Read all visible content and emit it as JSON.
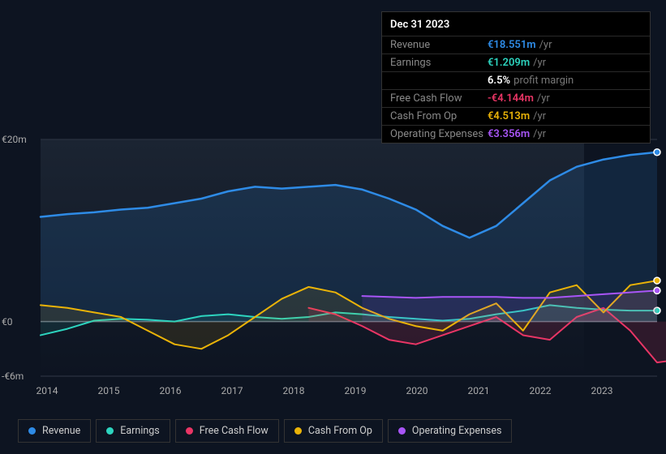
{
  "tooltip": {
    "date": "Dec 31 2023",
    "rows": [
      {
        "label": "Revenue",
        "value": "€18.551m",
        "suffix": "/yr",
        "color": "#2e8be6"
      },
      {
        "label": "Earnings",
        "value": "€1.209m",
        "suffix": "/yr",
        "color": "#2dd4bf"
      },
      {
        "label": "",
        "value": "6.5%",
        "suffix": "profit margin",
        "color": "#ffffff"
      },
      {
        "label": "Free Cash Flow",
        "value": "-€4.144m",
        "suffix": "/yr",
        "color": "#e93565"
      },
      {
        "label": "Cash From Op",
        "value": "€4.513m",
        "suffix": "/yr",
        "color": "#eab308"
      },
      {
        "label": "Operating Expenses",
        "value": "€3.356m",
        "suffix": "/yr",
        "color": "#a855f7"
      }
    ]
  },
  "chart": {
    "type": "line-area",
    "background_color": "#0d1421",
    "grid_color": "#2b3240",
    "axis_color": "#cccccc",
    "plot_fill_top": "#1b2432",
    "plot_fill_bottom": "#0d1421",
    "x_categories": [
      "2014",
      "2015",
      "2016",
      "2017",
      "2018",
      "2019",
      "2020",
      "2021",
      "2022",
      "2023"
    ],
    "x_step": 76,
    "y_ticks": [
      {
        "label": "€20m",
        "value": 20
      },
      {
        "label": "€0",
        "value": 0
      },
      {
        "label": "-€6m",
        "value": -6
      }
    ],
    "ylim": [
      -6,
      20
    ],
    "series": [
      {
        "name": "Revenue",
        "color": "#2e8be6",
        "fill_opacity": 0.15,
        "line_width": 2.5,
        "marker_end": true,
        "data": [
          11.5,
          11.8,
          12.0,
          12.3,
          12.5,
          13.0,
          13.5,
          14.3,
          14.8,
          14.6,
          14.8,
          15.0,
          14.5,
          13.5,
          12.3,
          10.5,
          9.2,
          10.5,
          13.0,
          15.5,
          17.0,
          17.8,
          18.3,
          18.6
        ]
      },
      {
        "name": "Earnings",
        "color": "#2dd4bf",
        "fill_opacity": 0.1,
        "line_width": 2,
        "marker_end": true,
        "data": [
          -1.5,
          -0.8,
          0.1,
          0.3,
          0.2,
          0.0,
          0.6,
          0.8,
          0.5,
          0.3,
          0.5,
          1.0,
          0.8,
          0.5,
          0.3,
          0.1,
          0.3,
          0.8,
          1.2,
          1.8,
          1.5,
          1.3,
          1.2,
          1.2
        ]
      },
      {
        "name": "Free Cash Flow",
        "color": "#e93565",
        "fill_opacity": 0.15,
        "line_width": 2,
        "marker_end": true,
        "start_index": 10,
        "data": [
          1.5,
          0.8,
          -0.5,
          -2.0,
          -2.5,
          -1.5,
          -0.5,
          0.5,
          -1.5,
          -2.0,
          0.5,
          1.5,
          -1.0,
          -4.5,
          -4.1
        ]
      },
      {
        "name": "Cash From Op",
        "color": "#eab308",
        "fill_opacity": 0.1,
        "line_width": 2,
        "marker_end": true,
        "data": [
          1.8,
          1.5,
          1.0,
          0.5,
          -1.0,
          -2.5,
          -3.0,
          -1.5,
          0.5,
          2.5,
          3.8,
          3.2,
          1.5,
          0.3,
          -0.5,
          -1.0,
          0.8,
          2.0,
          -1.0,
          3.2,
          4.0,
          1.0,
          4.0,
          4.5
        ]
      },
      {
        "name": "Operating Expenses",
        "color": "#a855f7",
        "fill_opacity": 0.12,
        "line_width": 2,
        "marker_end": true,
        "start_index": 12,
        "data": [
          2.8,
          2.7,
          2.6,
          2.7,
          2.7,
          2.7,
          2.6,
          2.6,
          2.8,
          3.0,
          3.2,
          3.4
        ]
      }
    ],
    "shade_region_end_x": 670,
    "label_fontsize": 12,
    "label_color": "#aaaaaa"
  },
  "legend": {
    "items": [
      {
        "label": "Revenue",
        "color": "#2e8be6"
      },
      {
        "label": "Earnings",
        "color": "#2dd4bf"
      },
      {
        "label": "Free Cash Flow",
        "color": "#e93565"
      },
      {
        "label": "Cash From Op",
        "color": "#eab308"
      },
      {
        "label": "Operating Expenses",
        "color": "#a855f7"
      }
    ]
  }
}
